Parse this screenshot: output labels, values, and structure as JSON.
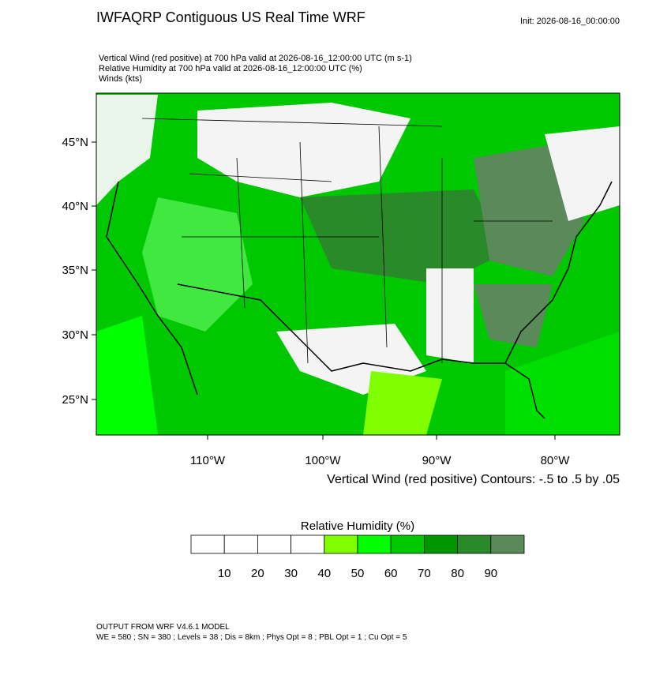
{
  "header": {
    "title": "IWFAQRP Contiguous US Real Time WRF",
    "init": "Init: 2026-08-16_00:00:00",
    "lines": [
      "Vertical Wind (red positive) at 700 hPa valid at 2026-08-16_12:00:00 UTC   (m s-1)",
      "Relative Humidity at 700 hPa valid at 2026-08-16_12:00:00 UTC   (%)",
      "Winds   (kts)"
    ]
  },
  "map": {
    "lat_labels": [
      "45°N",
      "40°N",
      "35°N",
      "30°N",
      "25°N"
    ],
    "lon_labels": [
      "110°W",
      "100°W",
      "90°W",
      "80°W"
    ],
    "contour_note": "Vertical Wind (red positive) Contours: -.5 to .5 by .05"
  },
  "colorbar": {
    "title": "Relative Humidity  (%)",
    "colors": [
      "#ffffff",
      "#ffffff",
      "#ffffff",
      "#ffffff",
      "#80ff00",
      "#00ff00",
      "#00c800",
      "#009600",
      "#2a8a2a",
      "#5a8a5a"
    ],
    "labels": [
      10,
      20,
      30,
      40,
      50,
      60,
      70,
      80,
      90
    ]
  },
  "footer": [
    "OUTPUT FROM WRF V4.6.1 MODEL",
    "WE = 580 ; SN = 380 ; Levels = 38 ; Dis = 8km ; Phys Opt = 8 ; PBL Opt = 1 ; Cu Opt = 5"
  ]
}
